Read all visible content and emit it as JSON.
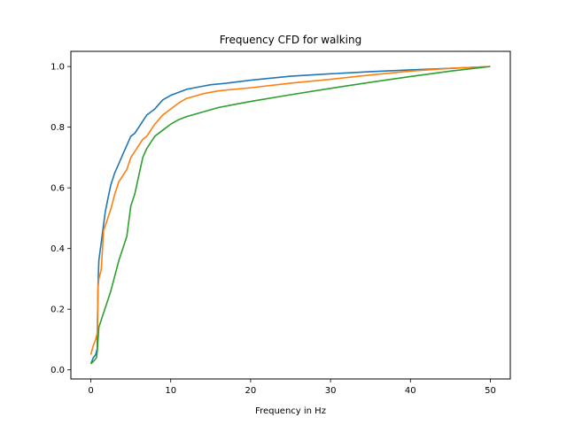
{
  "chart_data": {
    "type": "line",
    "title": "Frequency CFD for walking",
    "xlabel": "Frequency in Hz",
    "ylabel": "",
    "xlim": [
      -2.5,
      52.5
    ],
    "ylim": [
      -0.03,
      1.05
    ],
    "xticks": [
      0,
      10,
      20,
      30,
      40,
      50
    ],
    "yticks": [
      0.0,
      0.2,
      0.4,
      0.6,
      0.8,
      1.0
    ],
    "xtick_labels": [
      "0",
      "10",
      "20",
      "30",
      "40",
      "50"
    ],
    "ytick_labels": [
      "0.0",
      "0.2",
      "0.4",
      "0.6",
      "0.8",
      "1.0"
    ],
    "grid": false,
    "legend": "none",
    "series": [
      {
        "color": "#1f77b4",
        "x": [
          0.0,
          0.3,
          0.6,
          0.8,
          0.9,
          1.0,
          1.2,
          1.5,
          1.8,
          2.1,
          2.5,
          3.0,
          3.5,
          4.0,
          4.5,
          5.0,
          5.5,
          6.0,
          6.5,
          7.0,
          7.5,
          8.0,
          9.0,
          10.0,
          11.0,
          12.0,
          13.0,
          14.0,
          15.0,
          17.0,
          20.0,
          25.0,
          30.0,
          35.0,
          40.0,
          45.0,
          50.0
        ],
        "values": [
          0.02,
          0.04,
          0.05,
          0.07,
          0.28,
          0.36,
          0.4,
          0.46,
          0.52,
          0.56,
          0.61,
          0.65,
          0.68,
          0.71,
          0.74,
          0.77,
          0.78,
          0.8,
          0.82,
          0.84,
          0.85,
          0.86,
          0.89,
          0.905,
          0.915,
          0.925,
          0.93,
          0.935,
          0.94,
          0.945,
          0.955,
          0.968,
          0.976,
          0.983,
          0.989,
          0.994,
          1.0
        ]
      },
      {
        "color": "#ff7f0e",
        "x": [
          0.0,
          0.3,
          0.6,
          0.8,
          0.9,
          1.0,
          1.3,
          1.6,
          2.0,
          2.5,
          3.0,
          3.5,
          4.0,
          4.5,
          5.0,
          5.5,
          6.0,
          6.5,
          7.0,
          7.5,
          8.0,
          9.0,
          10.0,
          11.0,
          12.0,
          14.0,
          16.0,
          20.0,
          25.0,
          30.0,
          35.0,
          40.0,
          45.0,
          50.0
        ],
        "values": [
          0.05,
          0.08,
          0.1,
          0.12,
          0.27,
          0.3,
          0.33,
          0.46,
          0.49,
          0.53,
          0.58,
          0.62,
          0.64,
          0.66,
          0.7,
          0.72,
          0.74,
          0.76,
          0.77,
          0.79,
          0.81,
          0.84,
          0.86,
          0.88,
          0.895,
          0.91,
          0.92,
          0.93,
          0.945,
          0.958,
          0.972,
          0.985,
          0.994,
          1.0
        ]
      },
      {
        "color": "#2ca02c",
        "x": [
          0.0,
          0.4,
          0.7,
          0.8,
          1.0,
          1.5,
          2.0,
          2.5,
          3.0,
          3.5,
          4.0,
          4.5,
          5.0,
          5.5,
          6.0,
          6.5,
          7.0,
          7.5,
          8.0,
          9.0,
          10.0,
          11.0,
          12.0,
          14.0,
          16.0,
          18.0,
          20.0,
          25.0,
          30.0,
          35.0,
          40.0,
          45.0,
          50.0
        ],
        "values": [
          0.02,
          0.03,
          0.04,
          0.06,
          0.14,
          0.18,
          0.22,
          0.26,
          0.31,
          0.36,
          0.4,
          0.44,
          0.54,
          0.58,
          0.64,
          0.7,
          0.73,
          0.75,
          0.77,
          0.79,
          0.81,
          0.825,
          0.835,
          0.85,
          0.865,
          0.875,
          0.885,
          0.907,
          0.928,
          0.948,
          0.967,
          0.985,
          1.0
        ]
      }
    ]
  }
}
